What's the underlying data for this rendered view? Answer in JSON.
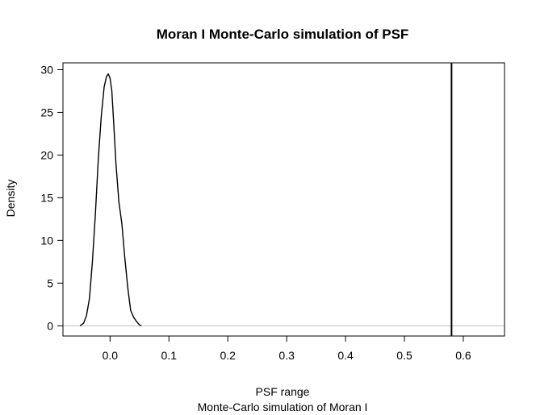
{
  "chart_data": {
    "type": "line",
    "title": "Moran I Monte-Carlo simulation of PSF",
    "xlabel": "PSF range",
    "xlabel_sub": "Monte-Carlo simulation of Moran I",
    "ylabel": "Density",
    "xlim": [
      -0.08,
      0.67
    ],
    "ylim": [
      -1.2,
      30.8
    ],
    "x_ticks": [
      0.0,
      0.1,
      0.2,
      0.3,
      0.4,
      0.5,
      0.6
    ],
    "x_tick_labels": [
      "0.0",
      "0.1",
      "0.2",
      "0.3",
      "0.4",
      "0.5",
      "0.6"
    ],
    "y_ticks": [
      0,
      5,
      10,
      15,
      20,
      25,
      30
    ],
    "y_tick_labels": [
      "0",
      "5",
      "10",
      "15",
      "20",
      "25",
      "30"
    ],
    "grid": false,
    "series": [
      {
        "color": "#000000",
        "x": [
          -0.051,
          -0.045,
          -0.04,
          -0.035,
          -0.03,
          -0.025,
          -0.02,
          -0.015,
          -0.01,
          -0.006,
          -0.003,
          0.0,
          0.003,
          0.006,
          0.01,
          0.015,
          0.02,
          0.025,
          0.03,
          0.035,
          0.04,
          0.045,
          0.05,
          0.053
        ],
        "y": [
          0.0,
          0.3,
          1.2,
          3.2,
          7.5,
          13.0,
          19.5,
          24.5,
          28.0,
          29.2,
          29.5,
          29.0,
          27.5,
          24.0,
          19.0,
          14.5,
          12.0,
          8.0,
          4.5,
          1.8,
          1.0,
          0.5,
          0.1,
          0.0
        ]
      }
    ],
    "baseline": {
      "y": 0,
      "color": "#bebebe"
    },
    "vline": {
      "x": 0.58,
      "color": "#000000"
    }
  }
}
